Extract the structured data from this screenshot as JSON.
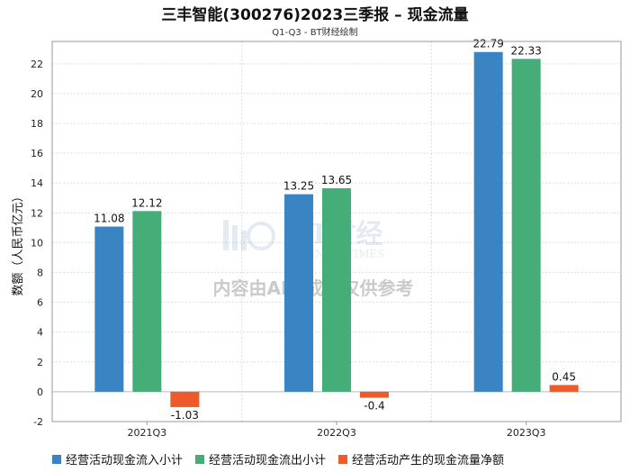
{
  "chart_data": {
    "type": "bar",
    "title": "三丰智能(300276)2023三季报 – 现金流量",
    "subtitle": "Q1-Q3 - BT财经绘制",
    "ylabel": "数额（人民币亿元）",
    "xlabel": "",
    "ylim": [
      -2,
      23.5
    ],
    "yticks": [
      -2,
      0,
      2,
      4,
      6,
      8,
      10,
      12,
      14,
      16,
      18,
      20,
      22
    ],
    "categories": [
      "2021Q3",
      "2022Q3",
      "2023Q3"
    ],
    "series": [
      {
        "name": "经营活动现金流入小计",
        "color": "#3a84c4",
        "values": [
          11.08,
          13.25,
          22.79
        ]
      },
      {
        "name": "经营活动现金流出小计",
        "color": "#45ad77",
        "values": [
          12.12,
          13.65,
          22.33
        ]
      },
      {
        "name": "经营活动产生的现金流量净额",
        "color": "#ee5a2a",
        "values": [
          -1.03,
          -0.4,
          0.45
        ]
      }
    ],
    "grid": true,
    "legend_position": "bottom"
  },
  "watermark": {
    "brand": "BT财经",
    "brand_sub": "BUSINESSTIMES",
    "notice": "内容由AI生成，仅供参考"
  }
}
